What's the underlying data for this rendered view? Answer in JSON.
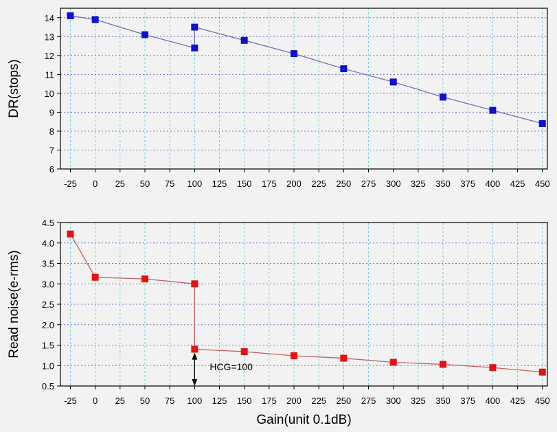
{
  "chart_data": [
    {
      "type": "line",
      "title": "",
      "xlabel": "",
      "ylabel": "DR(stops)",
      "xlim": [
        -35,
        455
      ],
      "ylim": [
        6,
        14.5
      ],
      "xticks": [
        -25,
        0,
        25,
        50,
        75,
        100,
        125,
        150,
        175,
        200,
        225,
        250,
        275,
        300,
        325,
        350,
        375,
        400,
        425,
        450
      ],
      "yticks": [
        6,
        7,
        8,
        9,
        10,
        11,
        12,
        13,
        14
      ],
      "grid": true,
      "series": [
        {
          "color": "#1010d0",
          "line_color": "#7070b0",
          "marker": "square",
          "points": [
            {
              "x": -25,
              "y": 14.1
            },
            {
              "x": 0,
              "y": 13.9
            },
            {
              "x": 50,
              "y": 13.1
            },
            {
              "x": 100,
              "y": 12.4
            },
            {
              "x": 100,
              "y": 13.5
            },
            {
              "x": 150,
              "y": 12.8
            },
            {
              "x": 200,
              "y": 12.1
            },
            {
              "x": 250,
              "y": 11.3
            },
            {
              "x": 300,
              "y": 10.6
            },
            {
              "x": 350,
              "y": 9.8
            },
            {
              "x": 400,
              "y": 9.1
            },
            {
              "x": 450,
              "y": 8.4
            }
          ]
        }
      ]
    },
    {
      "type": "line",
      "title": "",
      "xlabel": "Gain(unit 0.1dB)",
      "ylabel": "Read noise(e-rms)",
      "xlim": [
        -35,
        455
      ],
      "ylim": [
        0.5,
        4.5
      ],
      "xticks": [
        -25,
        0,
        25,
        50,
        75,
        100,
        125,
        150,
        175,
        200,
        225,
        250,
        275,
        300,
        325,
        350,
        375,
        400,
        425,
        450
      ],
      "yticks": [
        "0.5",
        "1.0",
        "1.5",
        "2.0",
        "2.5",
        "3.0",
        "3.5",
        "4.0",
        "4.5"
      ],
      "grid": true,
      "annotation": {
        "text": "HCG=100",
        "x": 100,
        "arrow_from": 1.38,
        "arrow_to": 0.5
      },
      "series": [
        {
          "color": "#e81010",
          "line_color": "#c06060",
          "marker": "square",
          "points": [
            {
              "x": -25,
              "y": 4.22
            },
            {
              "x": 0,
              "y": 3.16
            },
            {
              "x": 50,
              "y": 3.12
            },
            {
              "x": 100,
              "y": 3.0
            },
            {
              "x": 100,
              "y": 1.4
            },
            {
              "x": 150,
              "y": 1.34
            },
            {
              "x": 200,
              "y": 1.24
            },
            {
              "x": 250,
              "y": 1.18
            },
            {
              "x": 300,
              "y": 1.08
            },
            {
              "x": 350,
              "y": 1.03
            },
            {
              "x": 400,
              "y": 0.95
            },
            {
              "x": 450,
              "y": 0.84
            }
          ]
        }
      ]
    }
  ]
}
